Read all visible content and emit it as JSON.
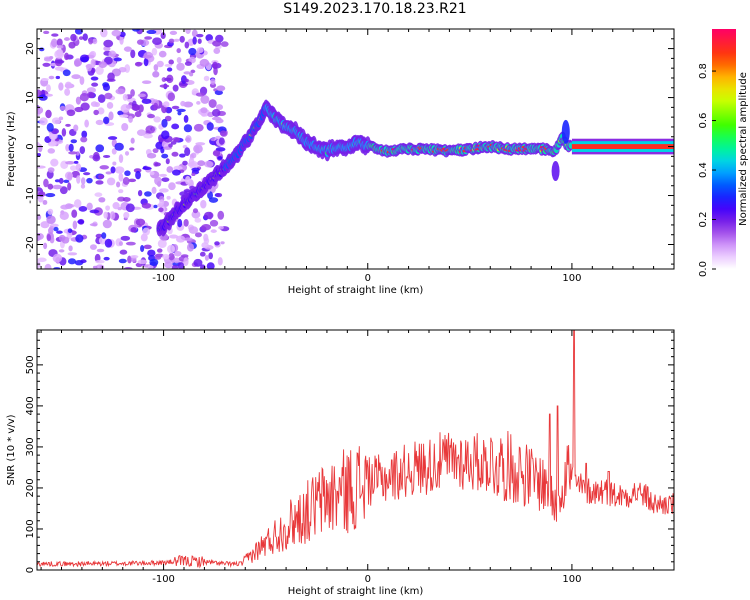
{
  "title": "S149.2023.170.18.23.R21",
  "chart_data": [
    {
      "type": "heatmap",
      "xlabel": "Height of straight line (km)",
      "ylabel": "Frequency (Hz)",
      "xlim": [
        -162,
        150
      ],
      "ylim": [
        -25,
        24
      ],
      "x_ticks": [
        -100,
        0,
        100
      ],
      "y_ticks": [
        20,
        10,
        0,
        -10,
        -20
      ],
      "colorbar": {
        "label": "Normalized spectral amplitude",
        "range": [
          0.0,
          0.97
        ],
        "ticks": [
          "0.0",
          "0.2",
          "0.4",
          "0.6",
          "0.8"
        ],
        "colormap": [
          "#ffffff",
          "#e0b0ff",
          "#8a2be2",
          "#3b00ff",
          "#0040ff",
          "#00c8ff",
          "#00ff80",
          "#40ff00",
          "#c8ff00",
          "#ffd000",
          "#ff4000",
          "#ff0066"
        ]
      },
      "ridge": {
        "x": [
          -102,
          -95,
          -88,
          -80,
          -72,
          -65,
          -58,
          -52,
          -50,
          -46,
          -40,
          -35,
          -30,
          -25,
          -20,
          -15,
          -10,
          -5,
          0,
          10,
          20,
          30,
          40,
          50,
          60,
          70,
          80,
          88,
          92,
          95,
          98,
          100,
          110,
          120,
          130,
          140,
          148
        ],
        "y": [
          -17,
          -14,
          -11,
          -8,
          -5,
          -2,
          2,
          6,
          8,
          6,
          4,
          3,
          1,
          0,
          -1,
          0,
          -0.5,
          1,
          0,
          -1,
          -0.5,
          -0.5,
          -1,
          -0.5,
          0,
          -0.5,
          -0.5,
          -0.5,
          -1,
          2,
          0,
          0,
          0,
          0,
          0,
          0,
          0
        ]
      },
      "noise_region_x": [
        -162,
        -70
      ]
    },
    {
      "type": "line",
      "xlabel": "Height of straight line (km)",
      "ylabel": "SNR (10 * v/v)",
      "xlim": [
        -162,
        150
      ],
      "ylim": [
        0,
        585
      ],
      "x_ticks": [
        -100,
        0,
        100
      ],
      "y_ticks": [
        0,
        100,
        200,
        300,
        400,
        500
      ],
      "color": "#e8383a",
      "envelope": {
        "x": [
          -162,
          -140,
          -120,
          -100,
          -90,
          -80,
          -70,
          -62,
          -55,
          -50,
          -45,
          -40,
          -35,
          -30,
          -25,
          -20,
          -15,
          -10,
          -5,
          0,
          5,
          10,
          15,
          20,
          25,
          30,
          35,
          40,
          45,
          50,
          55,
          60,
          65,
          70,
          75,
          80,
          85,
          88,
          90,
          92,
          95,
          98,
          100,
          102,
          105,
          110,
          115,
          120,
          125,
          130,
          135,
          140,
          145,
          150
        ],
        "y": [
          15,
          15,
          16,
          18,
          22,
          20,
          15,
          15,
          45,
          65,
          85,
          105,
          125,
          140,
          160,
          175,
          185,
          195,
          205,
          215,
          220,
          225,
          235,
          245,
          250,
          255,
          262,
          268,
          268,
          265,
          262,
          260,
          255,
          250,
          240,
          225,
          215,
          200,
          170,
          150,
          210,
          250,
          230,
          210,
          200,
          190,
          195,
          185,
          180,
          190,
          185,
          160,
          160,
          160
        ]
      },
      "spikes": [
        {
          "x": 89,
          "y": 380
        },
        {
          "x": 93,
          "y": 400
        },
        {
          "x": 101,
          "y": 585
        },
        {
          "x": 107,
          "y": 260
        },
        {
          "x": 118,
          "y": 240
        }
      ]
    }
  ]
}
